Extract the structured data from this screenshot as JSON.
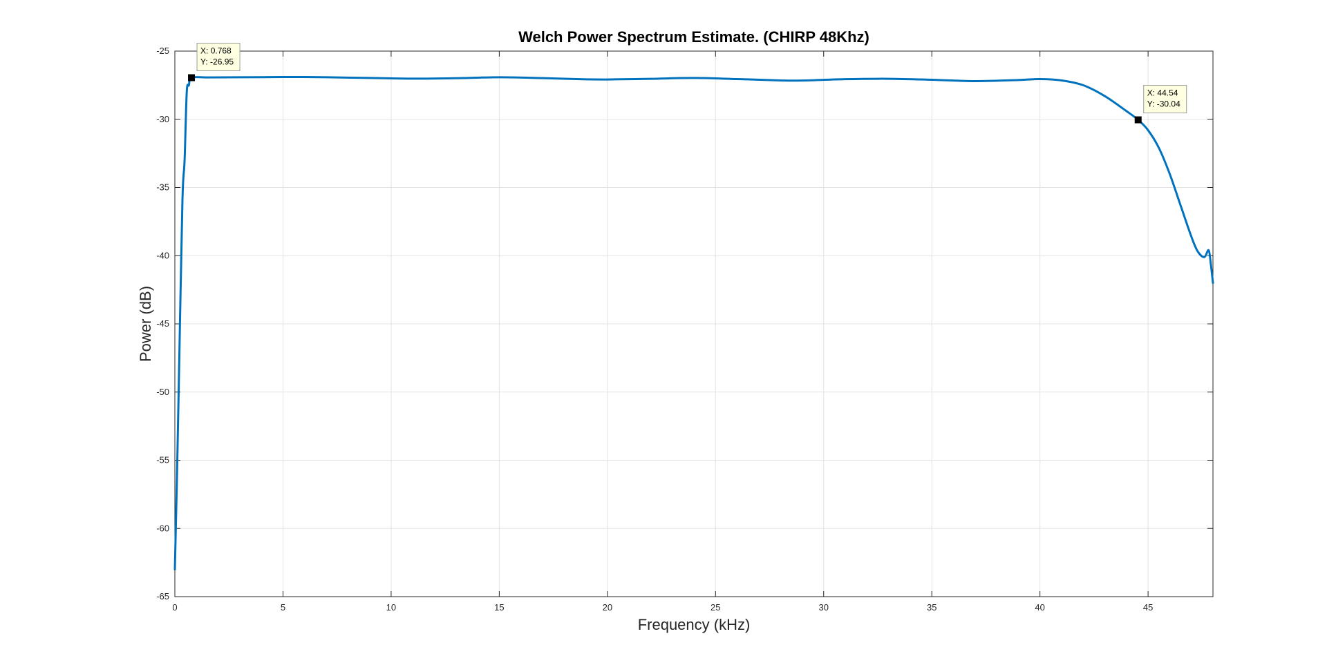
{
  "chart_data": {
    "type": "line",
    "title": "Welch Power Spectrum Estimate. (CHIRP 48Khz)",
    "xlabel": "Frequency (kHz)",
    "ylabel": "Power (dB)",
    "xlim": [
      0,
      48
    ],
    "ylim": [
      -65,
      -25
    ],
    "xticks": [
      0,
      5,
      10,
      15,
      20,
      25,
      30,
      35,
      40,
      45
    ],
    "yticks": [
      -25,
      -30,
      -35,
      -40,
      -45,
      -50,
      -55,
      -60,
      -65
    ],
    "grid": true,
    "line_color": "#0072BD",
    "series": [
      {
        "x": [
          0,
          0.1,
          0.2,
          0.35,
          0.45,
          0.55,
          0.65,
          0.768,
          1.5,
          3,
          6,
          9,
          11,
          13,
          15,
          17,
          19,
          20,
          22,
          24,
          26,
          28,
          29,
          31,
          33,
          35,
          37,
          39,
          40,
          41,
          42,
          43,
          44,
          44.54,
          45,
          45.5,
          46,
          46.5,
          47,
          47.3,
          47.6,
          47.8,
          47.9,
          48
        ],
        "y": [
          -63,
          -56,
          -48,
          -36,
          -33,
          -28,
          -27.5,
          -26.95,
          -26.93,
          -26.92,
          -26.9,
          -26.97,
          -27.02,
          -26.99,
          -26.92,
          -26.98,
          -27.07,
          -27.08,
          -27.03,
          -26.97,
          -27.05,
          -27.15,
          -27.16,
          -27.06,
          -27.03,
          -27.1,
          -27.2,
          -27.12,
          -27.05,
          -27.15,
          -27.5,
          -28.3,
          -29.4,
          -30.04,
          -30.8,
          -32.1,
          -34.0,
          -36.3,
          -38.6,
          -39.7,
          -40.1,
          -39.6,
          -40.6,
          -42
        ]
      }
    ],
    "datatips": [
      {
        "x_text": "X: 0.768",
        "y_text": "Y: -26.95",
        "x": 0.768,
        "y": -26.95
      },
      {
        "x_text": "X: 44.54",
        "y_text": "Y: -30.04",
        "x": 44.54,
        "y": -30.04
      }
    ]
  }
}
